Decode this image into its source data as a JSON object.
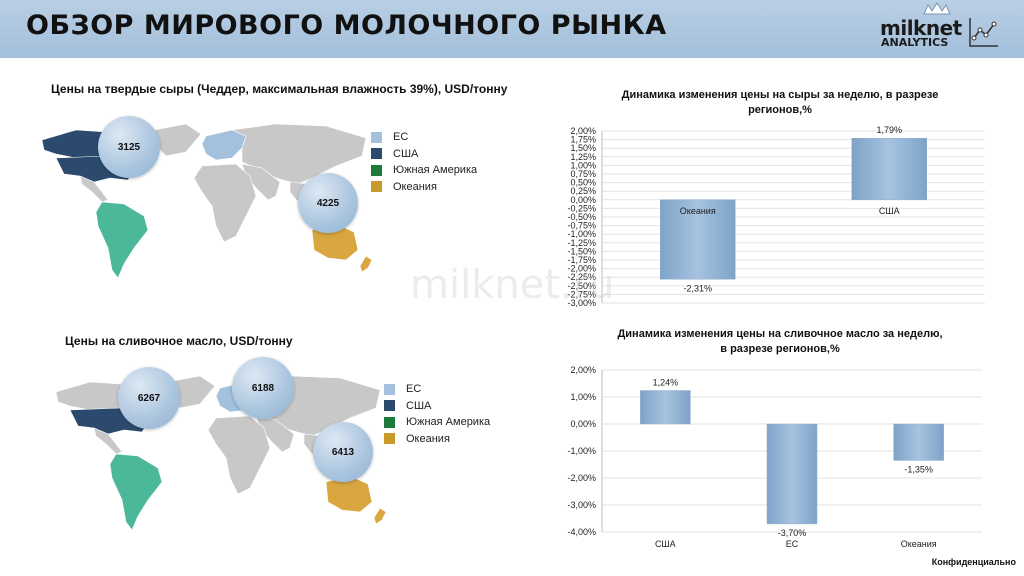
{
  "header": {
    "title": "ОБЗОР МИРОВОГО МОЛОЧНОГО РЫНКА",
    "logo_name": "milknet",
    "logo_sub": "ANALYTICS"
  },
  "colors": {
    "eu": "#a3c1dd",
    "usa": "#2c4a6e",
    "south_america": "#1e7a3a",
    "oceania": "#c79a2a",
    "bar": "#8eb0d2"
  },
  "cheese_map": {
    "title": "Цены на твердые сыры (Чеддер, максимальная влажность 39%), USD/тонну",
    "bubbles": {
      "usa": "3125",
      "oceania": "4225"
    }
  },
  "butter_map": {
    "title": "Цены на сливочное масло, USD/тонну",
    "bubbles": {
      "usa": "6267",
      "eu": "6188",
      "oceania": "6413"
    }
  },
  "legend": {
    "items": [
      {
        "label": "ЕС",
        "color": "#a3c1dd"
      },
      {
        "label": "США",
        "color": "#2c4a6e"
      },
      {
        "label": "Южная Америка",
        "color": "#1e7a3a"
      },
      {
        "label": "Океания",
        "color": "#c79a2a"
      }
    ]
  },
  "watermark": "milknet.ru",
  "footer": "Конфиденциально",
  "chart_data": [
    {
      "type": "bar",
      "title_line1": "Динамика изменения цены на сыры за неделю, в разрезе",
      "title_line2": "регионов,%",
      "categories": [
        "Океания",
        "США"
      ],
      "values": [
        -2.31,
        1.79
      ],
      "value_labels": [
        "-2,31%",
        "1,79%"
      ],
      "ylim": [
        -3.0,
        2.0
      ],
      "ytick_step": 0.25,
      "yticks": [
        "2,00%",
        "1,75%",
        "1,50%",
        "1,25%",
        "1,00%",
        "0,75%",
        "0,50%",
        "0,25%",
        "0,00%",
        "-0,25%",
        "-0,50%",
        "-0,75%",
        "-1,00%",
        "-1,25%",
        "-1,50%",
        "-1,75%",
        "-2,00%",
        "-2,25%",
        "-2,50%",
        "-2,75%",
        "-3,00%"
      ],
      "category_labels_inside": true,
      "grid": true
    },
    {
      "type": "bar",
      "title_line1": "Динамика изменения цены на сливочное масло за неделю,",
      "title_line2": "в разрезе регионов,%",
      "categories": [
        "США",
        "ЕС",
        "Океания"
      ],
      "values": [
        1.24,
        -3.7,
        -1.35
      ],
      "value_labels": [
        "1,24%",
        "-3,70%",
        "-1,35%"
      ],
      "ylim": [
        -4.0,
        2.0
      ],
      "ytick_step": 1.0,
      "yticks": [
        "2,00%",
        "1,00%",
        "0,00%",
        "-1,00%",
        "-2,00%",
        "-3,00%",
        "-4,00%"
      ],
      "category_labels_inside": false,
      "grid": true
    }
  ]
}
